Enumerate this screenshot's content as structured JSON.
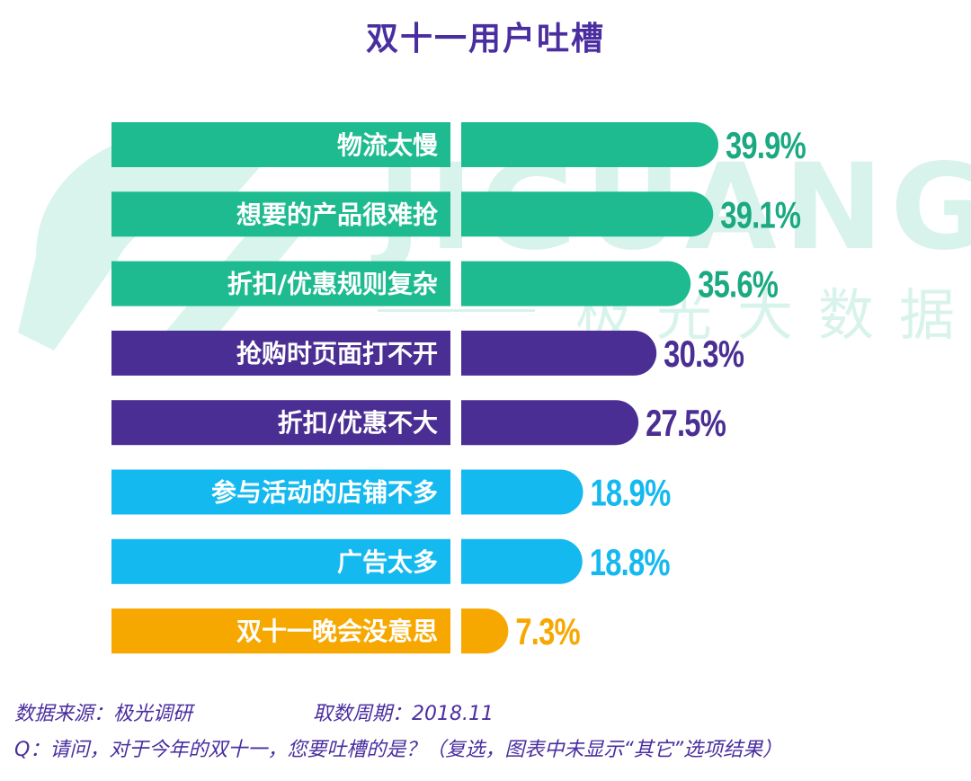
{
  "chart_data": {
    "type": "bar",
    "orientation": "horizontal",
    "title": "双十一用户吐槽",
    "categories": [
      "物流太慢",
      "想要的产品很难抢",
      "折扣/优惠规则复杂",
      "抢购时页面打不开",
      "折扣/优惠不大",
      "参与活动的店铺不多",
      "广告太多",
      "双十一晚会没意思"
    ],
    "values": [
      39.9,
      39.1,
      35.6,
      30.3,
      27.5,
      18.9,
      18.8,
      7.3
    ],
    "value_labels": [
      "39.9%",
      "39.1%",
      "35.6%",
      "30.3%",
      "27.5%",
      "18.9%",
      "18.8%",
      "7.3%"
    ],
    "bar_colors": [
      "#1dbb8f",
      "#1dbb8f",
      "#1dbb8f",
      "#4b2e93",
      "#4b2e93",
      "#14b9ef",
      "#14b9ef",
      "#f7a800"
    ],
    "value_label_colors": [
      "#1aa980",
      "#1aa980",
      "#1aa980",
      "#4b2e93",
      "#4b2e93",
      "#14b9ef",
      "#14b9ef",
      "#f7a800"
    ],
    "xlim": [
      0,
      40
    ],
    "grid": false,
    "legend": "none"
  },
  "watermark": {
    "brand": "JIGUANG",
    "cn": "极光大数据",
    "color": "#1dbb8f"
  },
  "footer": {
    "source": "数据来源：极光调研",
    "period": "取数周期：2018.11",
    "question": "Q：请问，对于今年的双十一，您要吐槽的是？（复选，图表中未显示“其它”选项结果）"
  }
}
